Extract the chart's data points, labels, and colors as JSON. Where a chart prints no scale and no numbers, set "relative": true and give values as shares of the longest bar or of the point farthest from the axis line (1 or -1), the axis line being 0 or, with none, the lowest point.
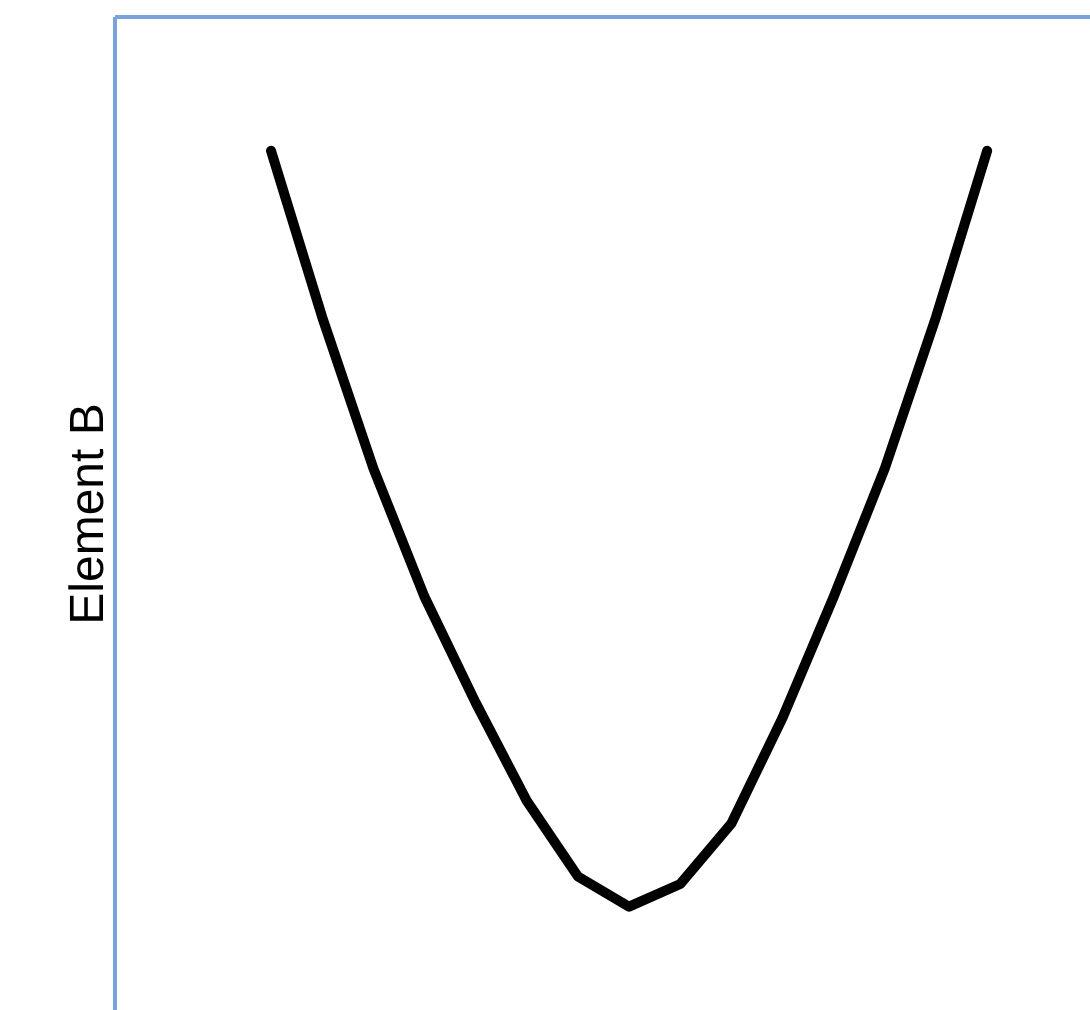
{
  "chart_data": {
    "type": "line",
    "relative": true,
    "ylabel": "Element B",
    "categories": [
      null,
      null,
      null,
      null,
      null,
      null,
      null,
      null,
      null,
      null,
      null,
      null,
      null,
      null,
      null
    ],
    "series": [
      {
        "color": "#000000",
        "values": [
          1.0,
          0.78,
          0.58,
          0.41,
          0.27,
          0.14,
          0.04,
          0.0,
          0.03,
          0.11,
          0.25,
          0.41,
          0.58,
          0.78,
          1.0
        ]
      }
    ],
    "grid": false
  }
}
